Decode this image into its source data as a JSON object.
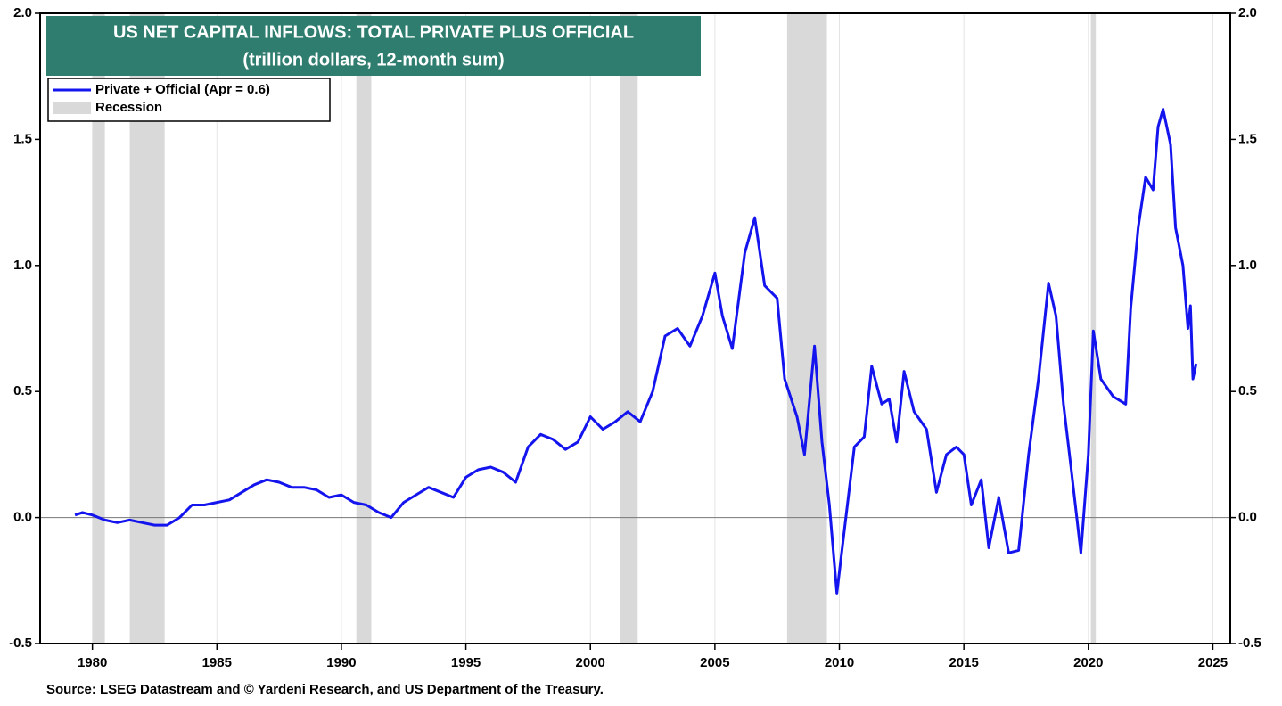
{
  "chart_data": {
    "type": "line",
    "title": "US NET CAPITAL INFLOWS: TOTAL PRIVATE PLUS OFFICIAL",
    "subtitle": "(trillion dollars, 12-month sum)",
    "source": "Source: LSEG Datastream and © Yardeni Research, and US Department of the Treasury.",
    "xlim": [
      1977.9,
      2025.7
    ],
    "xticks": [
      1980,
      1985,
      1990,
      1995,
      2000,
      2005,
      2010,
      2015,
      2020,
      2025
    ],
    "ylim": [
      -0.5,
      2.0
    ],
    "yticks": [
      {
        "value": -0.5,
        "label": "-0.5"
      },
      {
        "value": 0,
        "label": "0.0"
      },
      {
        "value": 0.5,
        "label": "0.5"
      },
      {
        "value": 1,
        "label": "1.0"
      },
      {
        "value": 1.5,
        "label": "1.5"
      },
      {
        "value": 2,
        "label": "2.0"
      }
    ],
    "y2lim": [
      -0.5,
      2.0
    ],
    "y2ticks": [
      {
        "value": -0.5,
        "label": "-0.5"
      },
      {
        "value": 0,
        "label": "0.0"
      },
      {
        "value": 0.5,
        "label": "0.5"
      },
      {
        "value": 1,
        "label": "1.0"
      },
      {
        "value": 1.5,
        "label": "1.5"
      },
      {
        "value": 2,
        "label": "2.0"
      }
    ],
    "reference_line": 0,
    "grid": true,
    "legend": "upper left",
    "recession_label": "Recession",
    "recession_color": "#d9d9d9",
    "recessions": [
      [
        1980.0,
        1980.5
      ],
      [
        1981.5,
        1982.9
      ],
      [
        1990.6,
        1991.2
      ],
      [
        2001.2,
        2001.9
      ],
      [
        2007.9,
        2009.5
      ],
      [
        2020.1,
        2020.3
      ]
    ],
    "x": [
      1979.3,
      1979.6,
      1980.0,
      1980.5,
      1981.0,
      1981.5,
      1982.0,
      1982.5,
      1983.0,
      1983.5,
      1984.0,
      1984.5,
      1985.0,
      1985.5,
      1986.0,
      1986.5,
      1987.0,
      1987.5,
      1988.0,
      1988.5,
      1989.0,
      1989.5,
      1990.0,
      1990.5,
      1991.0,
      1991.5,
      1992.0,
      1992.5,
      1993.0,
      1993.5,
      1994.0,
      1994.5,
      1995.0,
      1995.5,
      1996.0,
      1996.5,
      1997.0,
      1997.5,
      1998.0,
      1998.5,
      1999.0,
      1999.5,
      2000.0,
      2000.5,
      2001.0,
      2001.5,
      2002.0,
      2002.5,
      2003.0,
      2003.5,
      2004.0,
      2004.5,
      2005.0,
      2005.3,
      2005.7,
      2006.2,
      2006.6,
      2007.0,
      2007.5,
      2007.8,
      2008.3,
      2008.6,
      2009.0,
      2009.3,
      2009.6,
      2009.9,
      2010.2,
      2010.6,
      2011.0,
      2011.3,
      2011.7,
      2012.0,
      2012.3,
      2012.6,
      2013.0,
      2013.5,
      2013.9,
      2014.3,
      2014.7,
      2015.0,
      2015.3,
      2015.7,
      2016.0,
      2016.4,
      2016.8,
      2017.2,
      2017.6,
      2018.0,
      2018.4,
      2018.7,
      2019.0,
      2019.3,
      2019.7,
      2020.0,
      2020.2,
      2020.5,
      2021.0,
      2021.5,
      2021.7,
      2022.0,
      2022.3,
      2022.6,
      2022.8,
      2023.0,
      2023.3,
      2023.5,
      2023.8,
      2024.0,
      2024.1,
      2024.2,
      2024.33
    ],
    "series": [
      {
        "name": "Private + Official (Apr = 0.6)",
        "color": "#1414ee",
        "values": [
          0.01,
          0.02,
          0.01,
          -0.01,
          -0.02,
          -0.01,
          -0.02,
          -0.03,
          -0.03,
          0.0,
          0.05,
          0.05,
          0.06,
          0.07,
          0.1,
          0.13,
          0.15,
          0.14,
          0.12,
          0.12,
          0.11,
          0.08,
          0.09,
          0.06,
          0.05,
          0.02,
          0.0,
          0.06,
          0.09,
          0.12,
          0.1,
          0.08,
          0.16,
          0.19,
          0.2,
          0.18,
          0.14,
          0.28,
          0.33,
          0.31,
          0.27,
          0.3,
          0.4,
          0.35,
          0.38,
          0.42,
          0.38,
          0.5,
          0.72,
          0.75,
          0.68,
          0.8,
          0.97,
          0.8,
          0.67,
          1.05,
          1.19,
          0.92,
          0.87,
          0.55,
          0.4,
          0.25,
          0.68,
          0.3,
          0.05,
          -0.3,
          -0.05,
          0.28,
          0.32,
          0.6,
          0.45,
          0.47,
          0.3,
          0.58,
          0.42,
          0.35,
          0.1,
          0.25,
          0.28,
          0.25,
          0.05,
          0.15,
          -0.12,
          0.08,
          -0.14,
          -0.13,
          0.25,
          0.55,
          0.93,
          0.8,
          0.45,
          0.2,
          -0.14,
          0.25,
          0.74,
          0.55,
          0.48,
          0.45,
          0.83,
          1.15,
          1.35,
          1.3,
          1.55,
          1.62,
          1.48,
          1.15,
          1.0,
          0.75,
          0.84,
          0.55,
          0.61
        ]
      }
    ]
  }
}
